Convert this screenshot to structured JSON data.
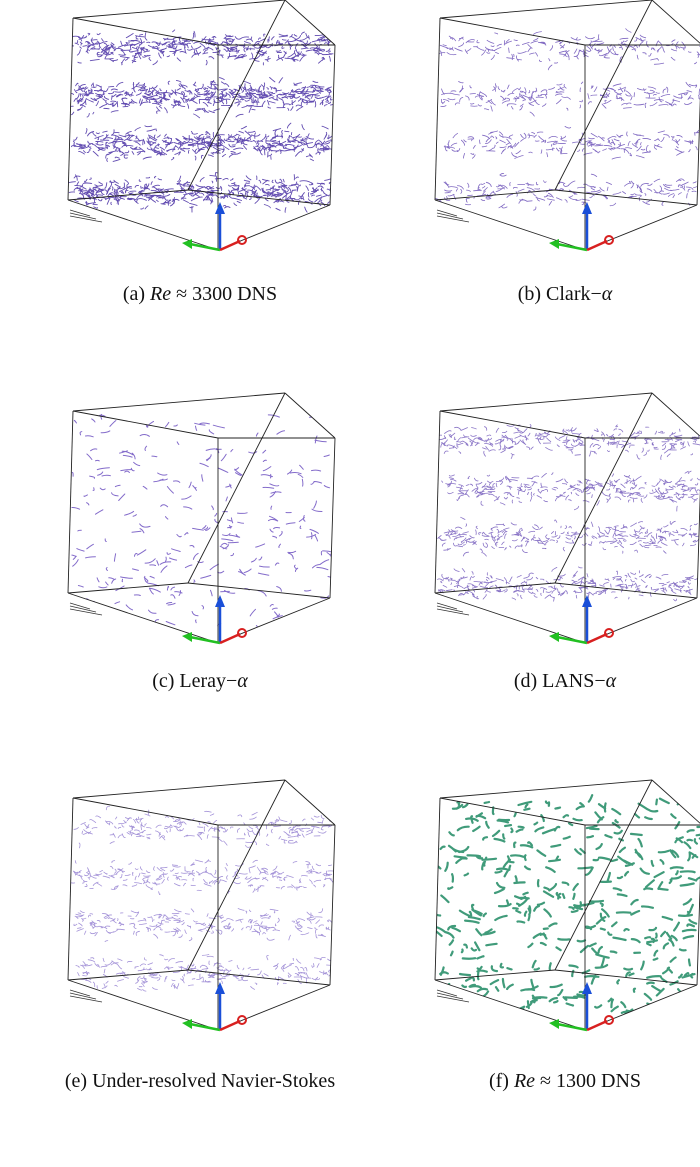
{
  "figure": {
    "panels": [
      {
        "caption": [
          {
            "text": "(a) "
          },
          {
            "text": "Re",
            "italic": true
          },
          {
            "text": " ≈ 3300 DNS"
          }
        ]
      },
      {
        "caption": [
          {
            "text": "(b) Clark−"
          },
          {
            "text": "α",
            "italic": true
          }
        ]
      },
      {
        "caption": [
          {
            "text": "(c) Leray−"
          },
          {
            "text": "α",
            "italic": true
          }
        ]
      },
      {
        "caption": [
          {
            "text": "(d) LANS−"
          },
          {
            "text": "α",
            "italic": true
          }
        ]
      },
      {
        "caption": [
          {
            "text": "(e) Under-resolved Navier-Stokes"
          }
        ]
      },
      {
        "caption": [
          {
            "text": "(f) "
          },
          {
            "text": "Re",
            "italic": true
          },
          {
            "text": " ≈ 1300 DNS"
          }
        ]
      }
    ]
  }
}
